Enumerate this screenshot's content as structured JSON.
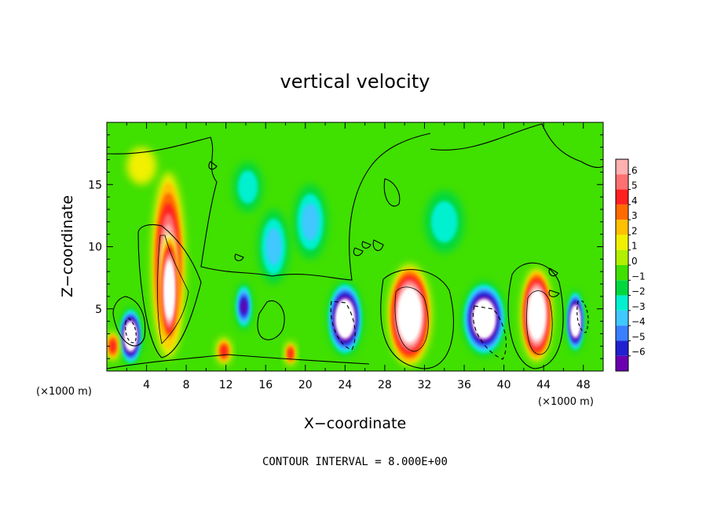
{
  "chart_data": {
    "type": "heatmap",
    "title": "vertical velocity",
    "xlabel": "X−coordinate",
    "ylabel": "Z−coordinate",
    "x_unit": "(×1000 m)",
    "xlim": [
      0,
      50
    ],
    "ylim": [
      0,
      20
    ],
    "x_ticks": [
      "4",
      "8",
      "12",
      "16",
      "20",
      "24",
      "28",
      "32",
      "36",
      "40",
      "44",
      "48"
    ],
    "y_ticks": [
      "5",
      "10",
      "15"
    ],
    "colorbar": {
      "labels": [
        "6",
        "5",
        "4",
        "3",
        "2",
        "1",
        "0",
        "−1",
        "−2",
        "−3",
        "−4",
        "−5",
        "−6"
      ],
      "colors": [
        "#ffb0b0",
        "#ff7070",
        "#ff2020",
        "#ff6a00",
        "#ffc000",
        "#f0f000",
        "#b0f000",
        "#40e000",
        "#00d840",
        "#00f0d0",
        "#40c8ff",
        "#3a7fff",
        "#2020d0",
        "#6a00b0"
      ]
    },
    "contour_interval_text": "CONTOUR INTERVAL = 8.000E+00",
    "cells": [
      {
        "x": 6.2,
        "z": 8.5,
        "w": 3.4,
        "h": 15.0,
        "value": 6,
        "sat": 8
      },
      {
        "x": 6.3,
        "z": 6.5,
        "w": 1.8,
        "h": 9.0,
        "value": 12,
        "sat": 12
      },
      {
        "x": 2.4,
        "z": 2.8,
        "w": 2.3,
        "h": 4.6,
        "value": -6,
        "sat": 12
      },
      {
        "x": 13.8,
        "z": 5.2,
        "w": 1.8,
        "h": 3.8,
        "value": -5,
        "sat": 6
      },
      {
        "x": 24.0,
        "z": 4.2,
        "w": 3.6,
        "h": 6.0,
        "value": -6,
        "sat": 12
      },
      {
        "x": 30.5,
        "z": 4.5,
        "w": 4.4,
        "h": 8.2,
        "value": 6,
        "sat": 12
      },
      {
        "x": 38.0,
        "z": 4.2,
        "w": 4.4,
        "h": 6.0,
        "value": -6,
        "sat": 12
      },
      {
        "x": 43.3,
        "z": 4.5,
        "w": 3.2,
        "h": 7.6,
        "value": 6,
        "sat": 12
      },
      {
        "x": 47.2,
        "z": 4.0,
        "w": 1.8,
        "h": 5.0,
        "value": -6,
        "sat": 12
      },
      {
        "x": 11.8,
        "z": 1.6,
        "w": 1.6,
        "h": 2.2,
        "value": 3,
        "sat": 4
      },
      {
        "x": 18.5,
        "z": 1.4,
        "w": 1.2,
        "h": 2.0,
        "value": 4,
        "sat": 4
      },
      {
        "x": 0.6,
        "z": 2.0,
        "w": 1.4,
        "h": 2.4,
        "value": 3,
        "sat": 4
      },
      {
        "x": 20.5,
        "z": 12.0,
        "w": 3.5,
        "h": 6.0,
        "value": -3,
        "sat": 3
      },
      {
        "x": 16.8,
        "z": 10.0,
        "w": 3.2,
        "h": 6.0,
        "value": -3,
        "sat": 3
      },
      {
        "x": 34.0,
        "z": 12.0,
        "w": 4.0,
        "h": 5.0,
        "value": -2,
        "sat": 2
      },
      {
        "x": 14.2,
        "z": 14.8,
        "w": 3.0,
        "h": 4.0,
        "value": -2,
        "sat": 2
      },
      {
        "x": 3.5,
        "z": 16.5,
        "w": 3.0,
        "h": 3.0,
        "value": 1,
        "sat": 1
      }
    ]
  }
}
